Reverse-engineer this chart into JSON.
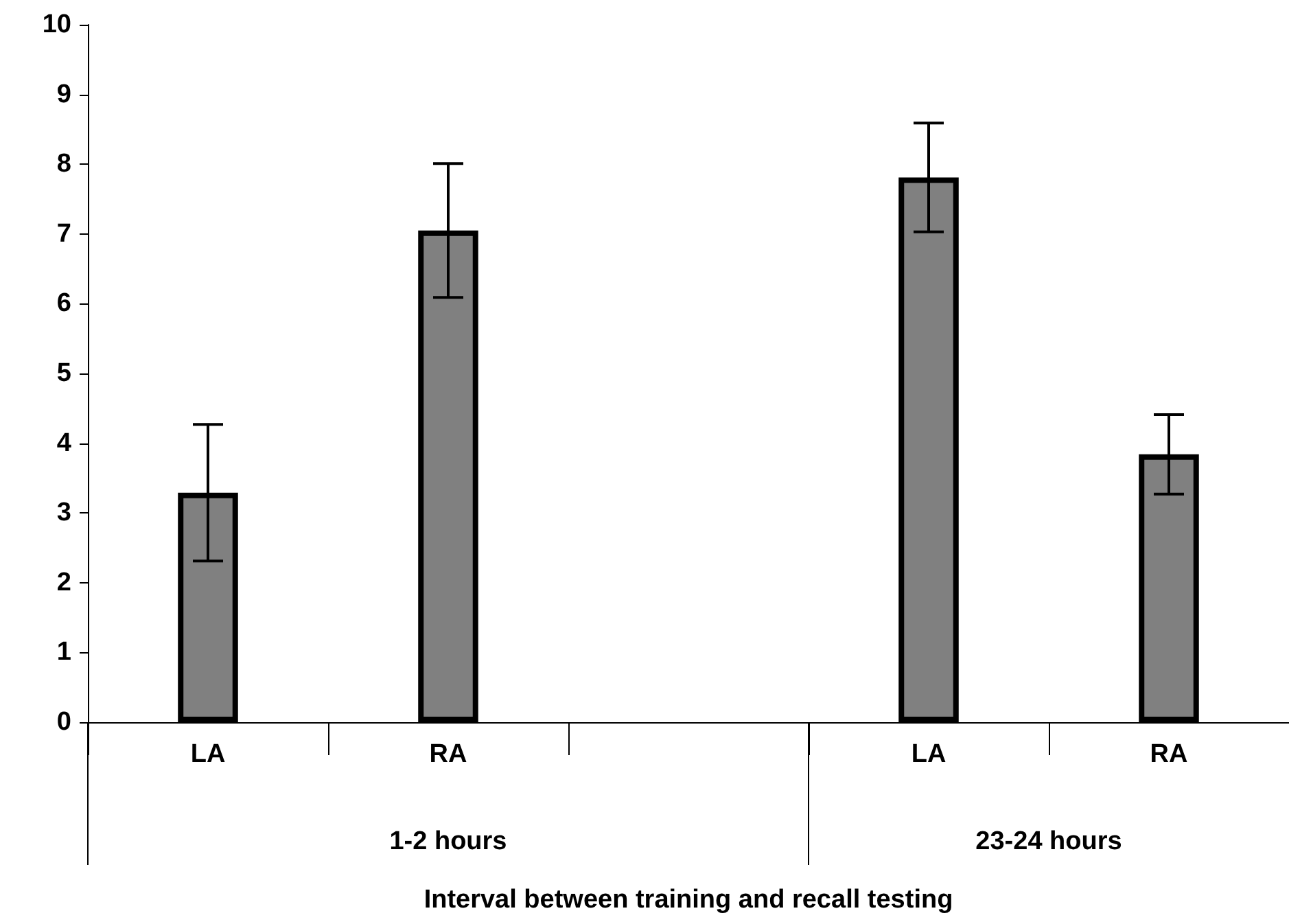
{
  "chart_data": {
    "type": "bar",
    "categories": [
      "LA",
      "RA",
      null,
      "LA",
      "RA"
    ],
    "values": [
      3.29,
      7.05,
      null,
      7.81,
      3.84
    ],
    "errors": [
      0.98,
      0.96,
      null,
      0.78,
      0.57
    ],
    "color": "#808080",
    "xlabel": "Interval between training and recall testing",
    "annotations": [
      "1-2 hours",
      "23-24 hours"
    ],
    "ylim": [
      0,
      10
    ],
    "yticks": [
      0,
      1,
      2,
      3,
      4,
      5,
      6,
      7,
      8,
      9,
      10
    ],
    "grid": false
  }
}
